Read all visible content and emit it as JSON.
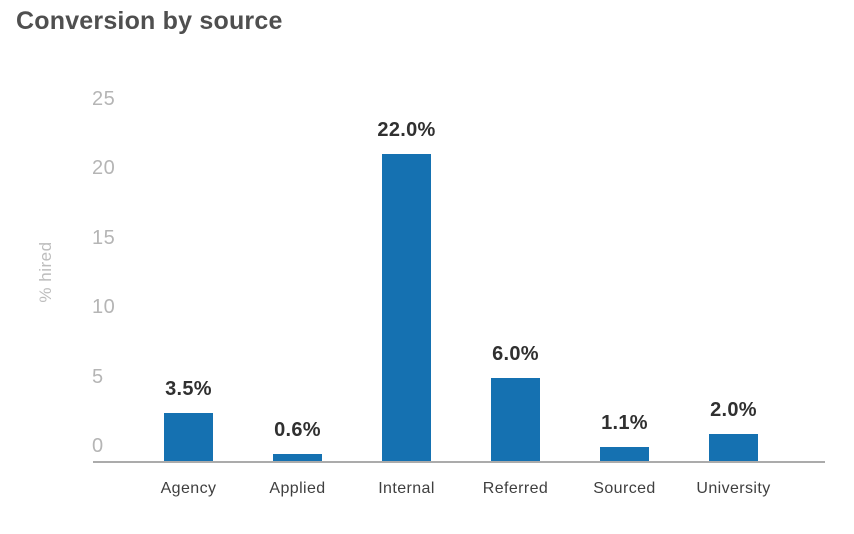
{
  "title": "Conversion by source",
  "chart_data": {
    "type": "bar",
    "title": "Conversion by source",
    "categories": [
      "Agency",
      "Applied",
      "Internal",
      "Referred",
      "Sourced",
      "University"
    ],
    "values": [
      3.5,
      0.6,
      22.0,
      6.0,
      1.1,
      2.0
    ],
    "value_labels": [
      "3.5%",
      "0.6%",
      "22.0%",
      "6.0%",
      "1.1%",
      "2.0%"
    ],
    "xlabel": "",
    "ylabel": "% hired",
    "ylim": [
      0,
      25
    ],
    "yticks": [
      0,
      5,
      10,
      15,
      20,
      25
    ],
    "grid": false,
    "legend": false,
    "bar_color": "#1571b1"
  },
  "colors": {
    "background": "#ffffff",
    "bar": "#1571b1",
    "title_text": "#4f4f4f",
    "tick_text": "#b5b5b5",
    "axis_line": "#ababab",
    "value_text": "#303030",
    "category_text": "#3f3f3f",
    "ylabel_text": "#bdbdbd"
  }
}
